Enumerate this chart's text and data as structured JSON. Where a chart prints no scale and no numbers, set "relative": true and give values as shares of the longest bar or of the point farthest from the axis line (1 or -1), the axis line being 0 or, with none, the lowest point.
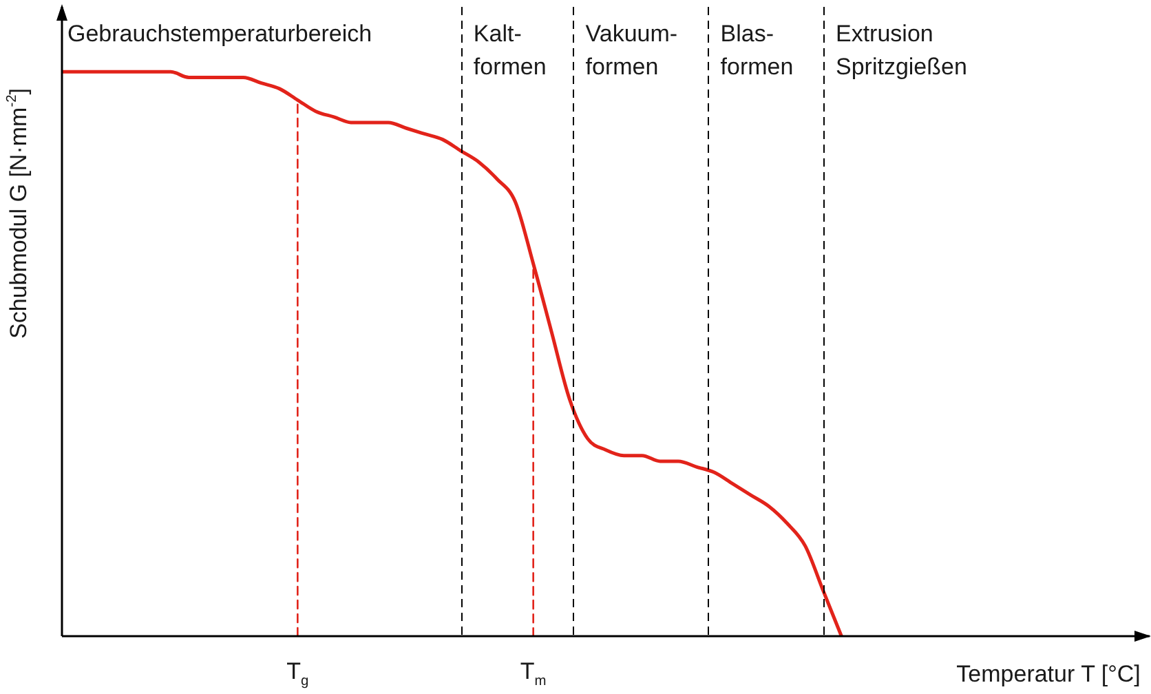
{
  "chart_data": {
    "type": "line",
    "relative": true,
    "xlabel": "Temperatur T [°C]",
    "ylabel": "Schubmodul G [N·mm$^{-2}$]",
    "categories": [
      null,
      null,
      null,
      null,
      null,
      null,
      null,
      null,
      null,
      null,
      null,
      null,
      null,
      "T$_{g}$",
      null,
      null,
      null,
      null,
      null,
      null,
      null,
      null,
      null,
      null,
      null,
      null,
      "T$_{m}$",
      null,
      null,
      null,
      null,
      null,
      null,
      null,
      null,
      null,
      null,
      null,
      null,
      null,
      null,
      null,
      null,
      null,
      null,
      null,
      null,
      null,
      null,
      null,
      null,
      null,
      null,
      null,
      null,
      null,
      null,
      null,
      null,
      null,
      null
    ],
    "series": [
      {
        "color": "#e2231a",
        "values": [
          1,
          1,
          1,
          1,
          1,
          1,
          1,
          0.99,
          0.99,
          0.99,
          0.99,
          0.98,
          0.97,
          0.95,
          0.93,
          0.92,
          0.91,
          0.91,
          0.91,
          0.9,
          0.89,
          0.88,
          0.86,
          0.84,
          0.81,
          0.77,
          0.66,
          0.54,
          0.42,
          0.35,
          0.33,
          0.32,
          0.32,
          0.31,
          0.31,
          0.3,
          0.29,
          0.27,
          0.25,
          0.23,
          0.2,
          0.16,
          0.08,
          0,
          null,
          null,
          null,
          null,
          null,
          null,
          null,
          null,
          null,
          null,
          null,
          null,
          null,
          null,
          null,
          null,
          null
        ]
      },
      {
        "type": "line",
        "line_style": "dashed",
        "color": "#e2231a",
        "x": [
          "T$_{g}$",
          "T$_{g}$"
        ],
        "values": [
          0,
          0.95
        ]
      },
      {
        "type": "line",
        "line_style": "dashed",
        "color": "#e2231a",
        "x": [
          "T$_{m}$",
          "T$_{m}$"
        ],
        "values": [
          0,
          0.66
        ]
      }
    ],
    "annotations": [
      "Gebrauchstemperaturbereich",
      "Kalt-\nformen",
      "Vakuum-\nformen",
      "Blas-\nformen",
      "Extrusion\nSpritzgießen"
    ]
  }
}
